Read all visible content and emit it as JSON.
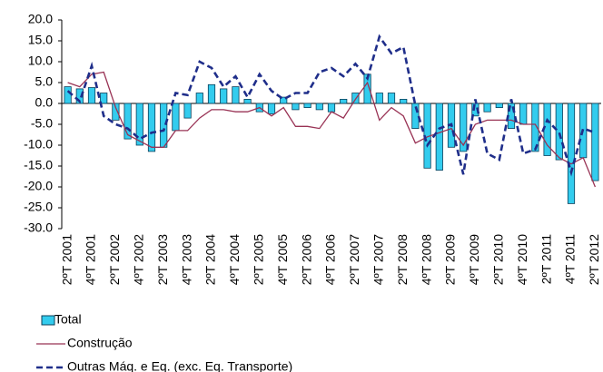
{
  "chart_data": {
    "type": "bar_line",
    "categories": [
      "2ºT 2001",
      null,
      "4ºT 2001",
      null,
      "2ºT 2002",
      null,
      "4ºT 2002",
      null,
      "2ºT 2003",
      null,
      "4ºT 2003",
      null,
      "2ºT 2004",
      null,
      "4ºT 2004",
      null,
      "2ºT 2005",
      null,
      "4ºT 2005",
      null,
      "2ºT 2006",
      null,
      "4ºT 2006",
      null,
      "2ºT 2007",
      null,
      "4ºT 2007",
      null,
      "2ºT 2008",
      null,
      "4ºT 2008",
      null,
      "2ºT 2009",
      null,
      "4ºT 2009",
      null,
      "2ºT 2010",
      null,
      "4ºT 2010",
      null,
      "2ºT 2011",
      null,
      "4ºT 2011",
      null,
      "2ºT 2012"
    ],
    "series": [
      {
        "name": "Total",
        "kind": "bar",
        "color": "#33ccee",
        "values": [
          4.0,
          3.5,
          3.8,
          2.5,
          -4.0,
          -8.5,
          -10.0,
          -11.5,
          -10.5,
          -6.5,
          -3.5,
          2.5,
          4.5,
          3.5,
          4.0,
          1.0,
          -2.0,
          -2.5,
          1.5,
          -1.5,
          -1.0,
          -1.5,
          -2.0,
          1.0,
          2.5,
          7.0,
          2.5,
          2.5,
          1.0,
          -6.0,
          -15.5,
          -16.0,
          -10.5,
          -11.5,
          -3.0,
          -2.0,
          -1.0,
          -6.0,
          -5.0,
          -11.5,
          -12.5,
          -13.5,
          -24.0,
          -13.0,
          -18.5
        ]
      },
      {
        "name": "Construção",
        "kind": "line",
        "color": "#993355",
        "values": [
          5.0,
          4.0,
          7.0,
          7.5,
          -1.0,
          -7.5,
          -9.0,
          -10.5,
          -10.5,
          -6.5,
          -6.5,
          -3.5,
          -1.5,
          -1.5,
          -2.0,
          -2.0,
          -1.0,
          -3.0,
          -1.0,
          -5.5,
          -5.5,
          -6.0,
          -2.0,
          -3.5,
          1.0,
          5.0,
          -4.0,
          -1.0,
          -3.0,
          -9.5,
          -8.0,
          -7.0,
          -6.0,
          -10.0,
          -5.0,
          -4.0,
          -4.0,
          -4.0,
          -5.0,
          -5.0,
          -10.0,
          -13.0,
          -14.5,
          -13.0,
          -20.0
        ]
      },
      {
        "name": "Outras Máq. e Eq. (exc. Eq. Transporte)",
        "kind": "dashed-line",
        "color": "#1f2e8a",
        "values": [
          3.0,
          0.5,
          9.0,
          -3.0,
          -5.0,
          -6.0,
          -8.5,
          -7.0,
          -6.5,
          2.5,
          2.0,
          10.0,
          8.5,
          4.0,
          6.5,
          1.5,
          7.0,
          3.0,
          1.0,
          2.5,
          2.5,
          7.5,
          8.5,
          6.5,
          9.5,
          6.0,
          16.0,
          12.0,
          13.5,
          -0.5,
          -10.0,
          -6.0,
          -5.0,
          -17.0,
          1.0,
          -12.0,
          -13.5,
          1.0,
          -12.0,
          -11.0,
          -4.0,
          -7.0,
          -16.5,
          -6.0,
          -7.0
        ]
      }
    ],
    "ylim": [
      -30,
      20
    ],
    "yticks": [
      {
        "value": -30,
        "label": "-30.0"
      },
      {
        "value": -25,
        "label": "-25.0"
      },
      {
        "value": -20,
        "label": "-20.0"
      },
      {
        "value": -15,
        "label": "-15.0"
      },
      {
        "value": -10,
        "label": "-10.0"
      },
      {
        "value": -5,
        "label": "-5.0"
      },
      {
        "value": 0,
        "label": "0.0"
      },
      {
        "value": 5,
        "label": "5.0"
      },
      {
        "value": 10,
        "label": "10.0"
      },
      {
        "value": 15,
        "label": "15.0"
      },
      {
        "value": 20,
        "label": "20.0"
      }
    ],
    "legend": "bottom"
  }
}
